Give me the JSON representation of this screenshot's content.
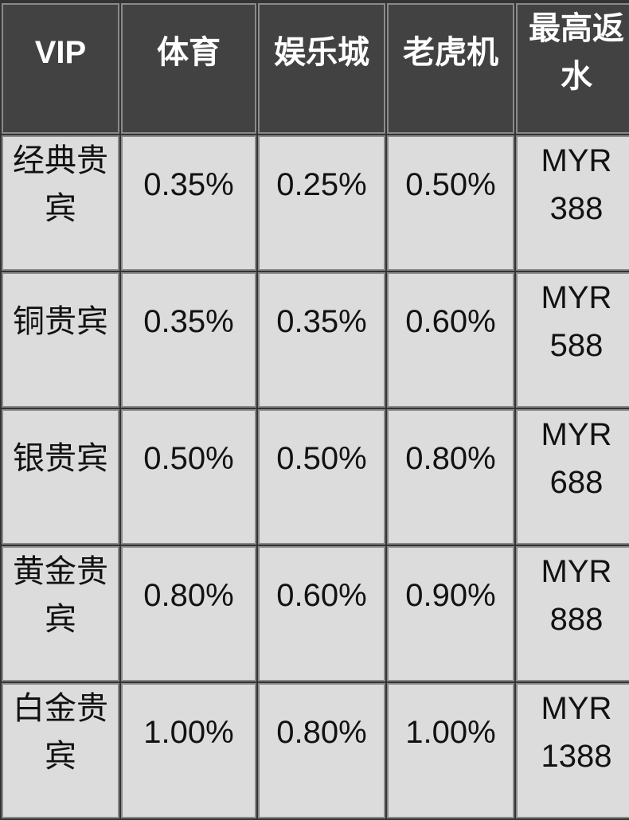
{
  "colors": {
    "page_bg": "#333333",
    "header_bg": "#424242",
    "header_text": "#ffffff",
    "cell_bg": "#dcdcdc",
    "cell_text": "#121212",
    "border_color": "#8a8a8a"
  },
  "table": {
    "columns": [
      {
        "label": "VIP"
      },
      {
        "label": "体育"
      },
      {
        "label": "娱乐城"
      },
      {
        "label": "老虎机"
      },
      {
        "label": "最高返水"
      }
    ],
    "rows": [
      {
        "tier": "经典贵宾",
        "sports": "0.35%",
        "casino": "0.25%",
        "slots": "0.50%",
        "max_rebate": "MYR 388"
      },
      {
        "tier": "铜贵宾",
        "sports": "0.35%",
        "casino": "0.35%",
        "slots": "0.60%",
        "max_rebate": "MYR 588"
      },
      {
        "tier": "银贵宾",
        "sports": "0.50%",
        "casino": "0.50%",
        "slots": "0.80%",
        "max_rebate": "MYR 688"
      },
      {
        "tier": "黄金贵宾",
        "sports": "0.80%",
        "casino": "0.60%",
        "slots": "0.90%",
        "max_rebate": "MYR 888"
      },
      {
        "tier": "白金贵宾",
        "sports": "1.00%",
        "casino": "0.80%",
        "slots": "1.00%",
        "max_rebate": "MYR 1388"
      }
    ]
  }
}
